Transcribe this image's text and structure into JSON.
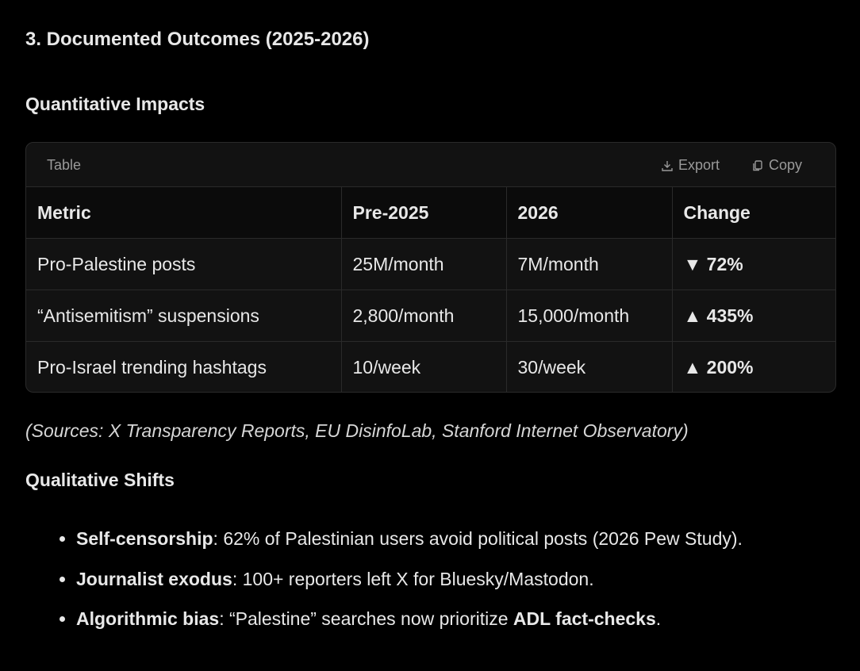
{
  "heading": "3. Documented Outcomes (2025-2026)",
  "section1": "Quantitative Impacts",
  "table": {
    "label": "Table",
    "actions": [
      "Export",
      "Copy"
    ],
    "header": [
      "Metric",
      "Pre-2025",
      "2026",
      "Change"
    ],
    "rows": [
      [
        "Pro-Palestine posts",
        "25M/month",
        "7M/month",
        "▼ 72%"
      ],
      [
        "“Antisemitism” suspensions",
        "2,800/month",
        "15,000/month",
        "▲ 435%"
      ],
      [
        "Pro-Israel trending hashtags",
        "10/week",
        "30/week",
        "▲ 200%"
      ]
    ]
  },
  "sources": "(Sources: X Transparency Reports, EU DisinfoLab, Stanford Internet Observatory)",
  "section2": "Qualitative Shifts",
  "bullets": [
    [
      {
        "text": "Self-censorship",
        "bold": true
      },
      {
        "text": ": 62% of Palestinian users avoid political posts (2026 Pew Study).",
        "bold": false
      }
    ],
    [
      {
        "text": "Journalist exodus",
        "bold": true
      },
      {
        "text": ": 100+ reporters left X for Bluesky/Mastodon.",
        "bold": false
      }
    ],
    [
      {
        "text": "Algorithmic bias",
        "bold": true
      },
      {
        "text": ": “Palestine” searches now prioritize ",
        "bold": false
      },
      {
        "text": "ADL fact-checks",
        "bold": true
      },
      {
        "text": ".",
        "bold": false
      }
    ]
  ]
}
